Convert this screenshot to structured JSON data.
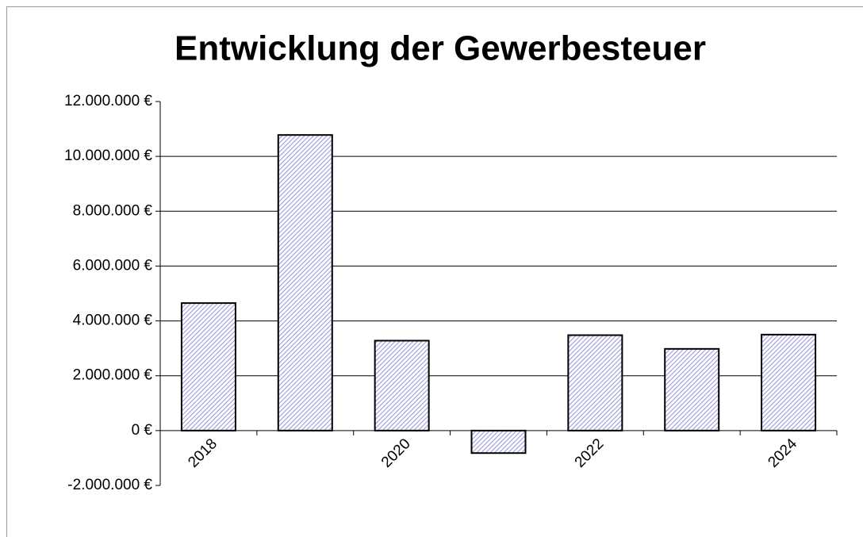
{
  "chart_data": {
    "type": "bar",
    "title": "Entwicklung der Gewerbesteuer",
    "categories": [
      "2018",
      null,
      "2020",
      null,
      "2022",
      null,
      "2024"
    ],
    "values": [
      4650000,
      10780000,
      3280000,
      -820000,
      3480000,
      2980000,
      3500000
    ],
    "color": "#9999dd",
    "ylim": [
      -2000000,
      12000000
    ],
    "yticks": [
      {
        "value": -2000000,
        "label": "-2.000.000 €"
      },
      {
        "value": 0,
        "label": "0 €"
      },
      {
        "value": 2000000,
        "label": "2.000.000 €"
      },
      {
        "value": 4000000,
        "label": "4.000.000 €"
      },
      {
        "value": 6000000,
        "label": "6.000.000 €"
      },
      {
        "value": 8000000,
        "label": "8.000.000 €"
      },
      {
        "value": 10000000,
        "label": "10.000.000 €"
      },
      {
        "value": 12000000,
        "label": "12.000.000 €"
      }
    ],
    "grid": true
  }
}
